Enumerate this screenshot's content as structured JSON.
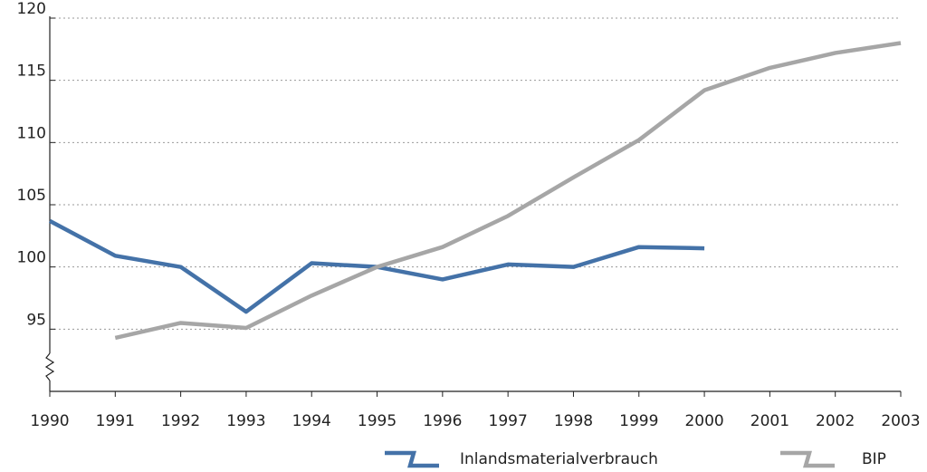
{
  "chart_data": {
    "type": "line",
    "x": [
      1990,
      1991,
      1992,
      1993,
      1994,
      1995,
      1996,
      1997,
      1998,
      1999,
      2000,
      2001,
      2002,
      2003
    ],
    "series": [
      {
        "name": "Inlandsmaterialverbrauch",
        "color": "#4472a8",
        "values": [
          103.7,
          100.9,
          100.0,
          96.4,
          100.3,
          100.0,
          99.0,
          100.2,
          100.0,
          101.6,
          101.5,
          null,
          null,
          null
        ]
      },
      {
        "name": "BIP",
        "color": "#a6a6a6",
        "values": [
          null,
          94.3,
          95.5,
          95.1,
          97.7,
          100.0,
          101.6,
          104.1,
          107.2,
          110.2,
          114.2,
          116.0,
          117.2,
          118.0
        ]
      }
    ],
    "xlim": [
      1990,
      2003
    ],
    "xticks": [
      1990,
      1991,
      1992,
      1993,
      1994,
      1995,
      1996,
      1997,
      1998,
      1999,
      2000,
      2001,
      2002,
      2003
    ],
    "ylim": [
      90,
      120
    ],
    "yticks": [
      95,
      100,
      105,
      110,
      115,
      120
    ],
    "grid": true
  }
}
